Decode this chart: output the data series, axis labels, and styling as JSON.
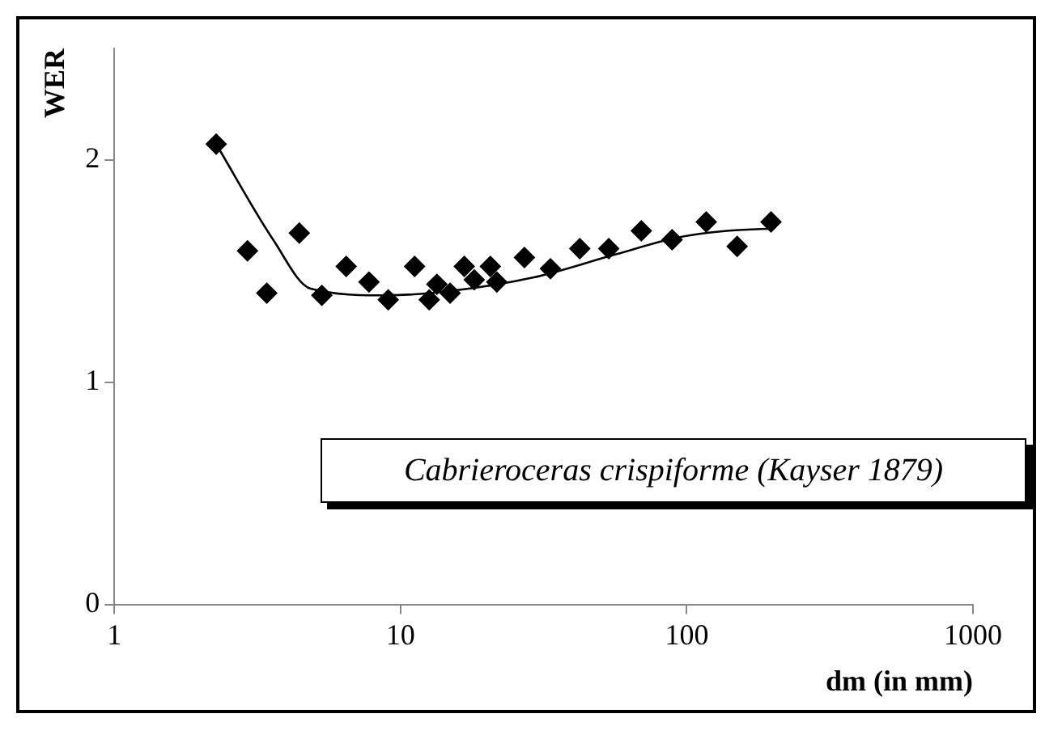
{
  "chart_data": {
    "type": "scatter",
    "xlabel": "dm (in mm)",
    "ylabel": "WER",
    "log": "x",
    "xlim": [
      1,
      1000
    ],
    "xticks": [
      1,
      10,
      100,
      1000
    ],
    "ylim": [
      0,
      2.5
    ],
    "yticks": [
      0,
      1,
      2
    ],
    "grid": false,
    "legend": false,
    "annotations": [
      "Cabrieroceras crispiforme (Kayser 1879)"
    ],
    "series": [
      {
        "type": "scatter",
        "marker": "diamond",
        "color": "#000000",
        "x": [
          2.27,
          2.92,
          3.41,
          4.43,
          5.31,
          6.46,
          7.76,
          9.06,
          11.2,
          12.6,
          13.4,
          14.9,
          16.7,
          18.1,
          20.6,
          21.7,
          27.1,
          33.4,
          42.3,
          53.4,
          69.4,
          88.9,
          117,
          150,
          197
        ],
        "values": [
          2.07,
          1.59,
          1.4,
          1.67,
          1.39,
          1.52,
          1.45,
          1.37,
          1.52,
          1.37,
          1.44,
          1.4,
          1.52,
          1.46,
          1.52,
          1.45,
          1.56,
          1.51,
          1.6,
          1.6,
          1.68,
          1.64,
          1.72,
          1.61,
          1.72
        ]
      },
      {
        "type": "line",
        "marker": "none",
        "color": "#000000",
        "x": [
          2.27,
          3.59,
          4.85,
          8.9,
          15,
          29,
          55,
          93,
          138,
          197
        ],
        "values": [
          2.07,
          1.64,
          1.42,
          1.39,
          1.41,
          1.47,
          1.57,
          1.65,
          1.68,
          1.69
        ]
      }
    ]
  }
}
